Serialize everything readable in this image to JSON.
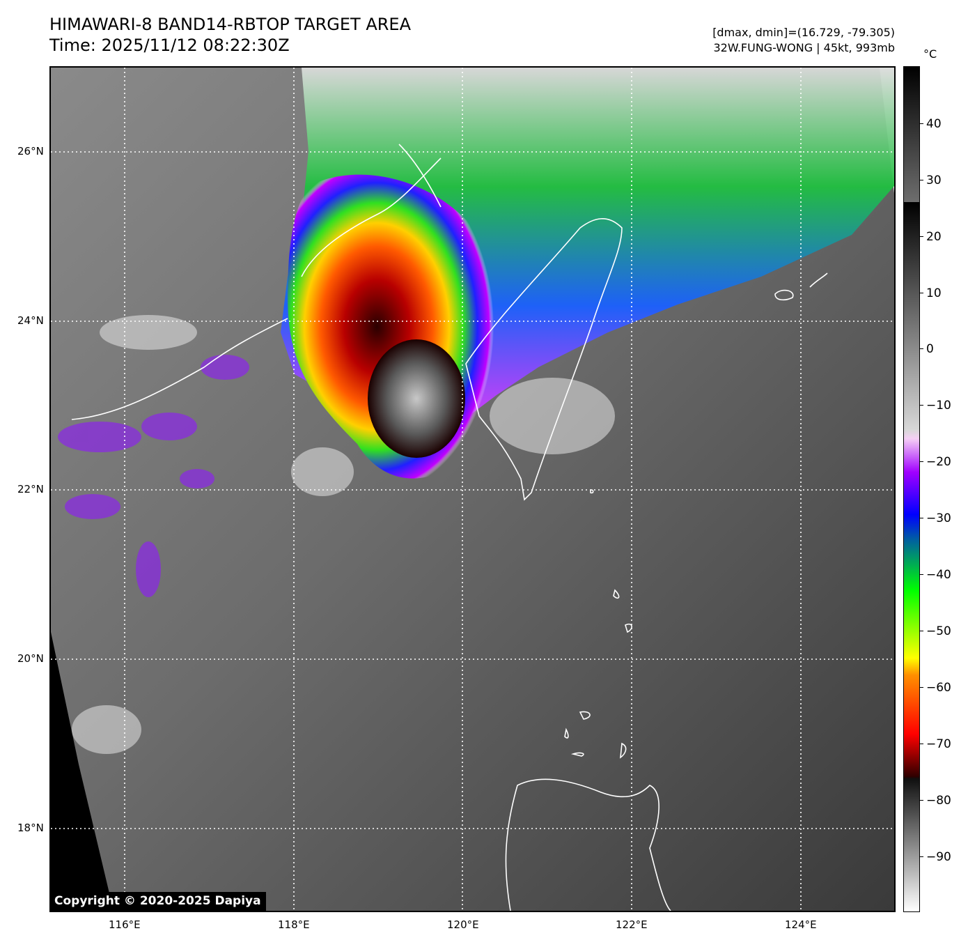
{
  "header": {
    "title_line1": "HIMAWARI-8 BAND14-RBTOP TARGET AREA",
    "title_line2": "Time: 2025/11/12 08:22:30Z",
    "info_line1": "[dmax, dmin]=(16.729, -79.305)",
    "info_line2": "32W.FUNG-WONG | 45kt, 993mb"
  },
  "map": {
    "lon_range": [
      115.1,
      125.1
    ],
    "lat_range": [
      17.0,
      27.0
    ],
    "lat_ticks": [
      {
        "value": 26,
        "label": "26°N"
      },
      {
        "value": 24,
        "label": "24°N"
      },
      {
        "value": 22,
        "label": "22°N"
      },
      {
        "value": 20,
        "label": "20°N"
      },
      {
        "value": 18,
        "label": "18°N"
      }
    ],
    "lon_ticks": [
      {
        "value": 116,
        "label": "116°E"
      },
      {
        "value": 118,
        "label": "118°E"
      },
      {
        "value": 120,
        "label": "120°E"
      },
      {
        "value": 122,
        "label": "122°E"
      },
      {
        "value": 124,
        "label": "124°E"
      }
    ],
    "gridlines": "dotted",
    "coastline_color": "#ffffff"
  },
  "colorbar": {
    "unit": "°C",
    "range": [
      -100,
      50
    ],
    "ticks": [
      {
        "value": 40,
        "label": "40"
      },
      {
        "value": 30,
        "label": "30"
      },
      {
        "value": 20,
        "label": "20"
      },
      {
        "value": 10,
        "label": "10"
      },
      {
        "value": 0,
        "label": "0"
      },
      {
        "value": -10,
        "label": "−10"
      },
      {
        "value": -20,
        "label": "−20"
      },
      {
        "value": -30,
        "label": "−30"
      },
      {
        "value": -40,
        "label": "−40"
      },
      {
        "value": -50,
        "label": "−50"
      },
      {
        "value": -60,
        "label": "−60"
      },
      {
        "value": -70,
        "label": "−70"
      },
      {
        "value": -80,
        "label": "−80"
      },
      {
        "value": -90,
        "label": "−90"
      }
    ]
  },
  "copyright": "Copyright © 2020-2025 Dapiya"
}
